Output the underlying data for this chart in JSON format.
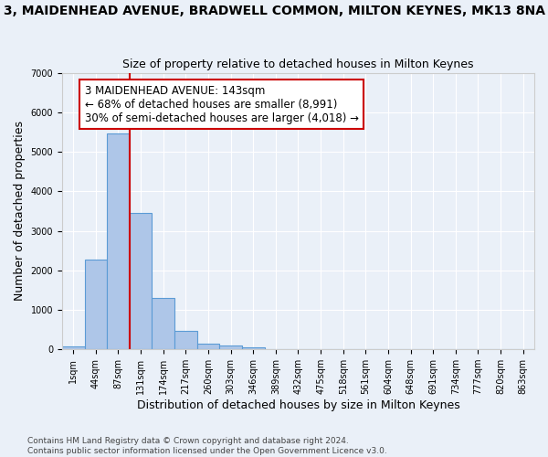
{
  "title_main": "3, MAIDENHEAD AVENUE, BRADWELL COMMON, MILTON KEYNES, MK13 8NA",
  "title_sub": "Size of property relative to detached houses in Milton Keynes",
  "xlabel": "Distribution of detached houses by size in Milton Keynes",
  "ylabel": "Number of detached properties",
  "bar_values": [
    75,
    2280,
    5460,
    3440,
    1310,
    460,
    155,
    90,
    60,
    0,
    0,
    0,
    0,
    0,
    0,
    0,
    0,
    0,
    0,
    0,
    0
  ],
  "bar_labels": [
    "1sqm",
    "44sqm",
    "87sqm",
    "131sqm",
    "174sqm",
    "217sqm",
    "260sqm",
    "303sqm",
    "346sqm",
    "389sqm",
    "432sqm",
    "475sqm",
    "518sqm",
    "561sqm",
    "604sqm",
    "648sqm",
    "691sqm",
    "734sqm",
    "777sqm",
    "820sqm",
    "863sqm"
  ],
  "bar_color": "#aec6e8",
  "bar_edge_color": "#5b9bd5",
  "vline_x_index": 3,
  "vline_color": "#cc0000",
  "annotation_text": "3 MAIDENHEAD AVENUE: 143sqm\n← 68% of detached houses are smaller (8,991)\n30% of semi-detached houses are larger (4,018) →",
  "annotation_box_color": "#ffffff",
  "annotation_box_edge": "#cc0000",
  "annotation_fontsize": 8.5,
  "ylim": [
    0,
    7000
  ],
  "yticks": [
    0,
    1000,
    2000,
    3000,
    4000,
    5000,
    6000,
    7000
  ],
  "footer_text": "Contains HM Land Registry data © Crown copyright and database right 2024.\nContains public sector information licensed under the Open Government Licence v3.0.",
  "bg_color": "#eaf0f8",
  "grid_color": "#ffffff",
  "title_fontsize": 10,
  "subtitle_fontsize": 9,
  "xlabel_fontsize": 9,
  "ylabel_fontsize": 9,
  "footer_fontsize": 6.5,
  "tick_fontsize": 7
}
